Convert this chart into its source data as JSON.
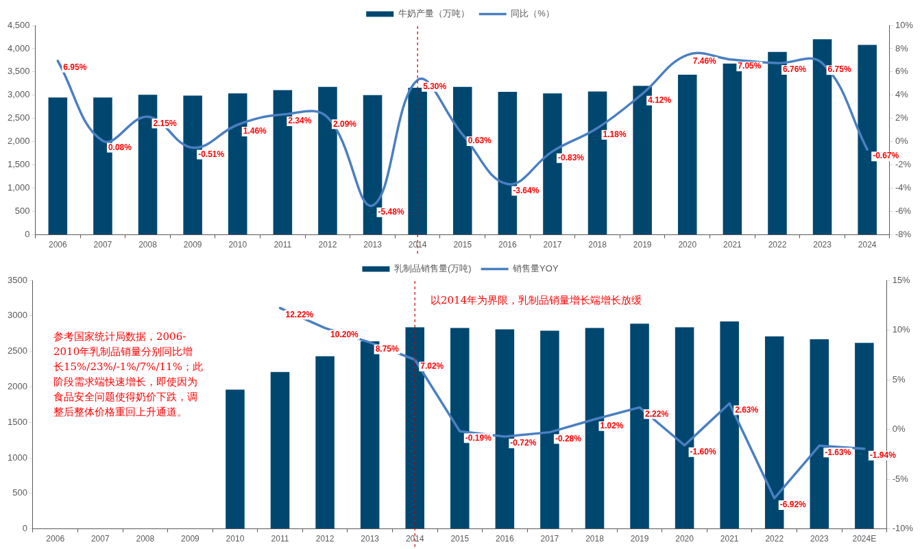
{
  "chart_data": [
    {
      "type": "bar",
      "categories": [
        "2006",
        "2007",
        "2008",
        "2009",
        "2010",
        "2011",
        "2012",
        "2013",
        "2014",
        "2015",
        "2016",
        "2017",
        "2018",
        "2019",
        "2020",
        "2021",
        "2022",
        "2023",
        "2024"
      ],
      "series": [
        {
          "name": "牛奶产量（万吨）",
          "color": "#00476f",
          "values": [
            2950,
            2950,
            3010,
            2990,
            3040,
            3110,
            3180,
            3000,
            3160,
            3180,
            3070,
            3040,
            3080,
            3200,
            3440,
            3680,
            3930,
            4200,
            4080
          ]
        },
        {
          "name": "同比（%）",
          "type": "line",
          "axis": "y2",
          "color": "#4a7fc1",
          "values": [
            6.95,
            0.08,
            2.15,
            -0.51,
            1.46,
            2.34,
            2.09,
            -5.48,
            5.3,
            0.63,
            -3.64,
            -0.83,
            1.18,
            4.12,
            7.46,
            7.05,
            6.76,
            6.75,
            -0.67
          ],
          "value_labels": [
            "6.95%",
            "0.08%",
            "2.15%",
            "-0.51%",
            "1.46%",
            "2.34%",
            "2.09%",
            "-5.48%",
            "5.30%",
            "0.63%",
            "-3.64%",
            "-0.83%",
            "1.18%",
            "4.12%",
            "7.46%",
            "7.05%",
            "6.76%",
            "6.75%",
            "-0.67%"
          ]
        }
      ],
      "ylim": [
        0,
        4500
      ],
      "yticks": [
        0,
        {
          "value": 500,
          "label": "500"
        },
        {
          "value": 1000,
          "label": "1,000"
        },
        {
          "value": 1500,
          "label": "1,500"
        },
        {
          "value": 2000,
          "label": "2,000"
        },
        {
          "value": 2500,
          "label": "2,500"
        },
        {
          "value": 3000,
          "label": "3,000"
        },
        {
          "value": 3500,
          "label": "3,500"
        },
        {
          "value": 4000,
          "label": "4,000"
        },
        {
          "value": 4500,
          "label": "4,500"
        }
      ],
      "y2lim": [
        -8,
        10
      ],
      "y2ticks": [
        {
          "value": -8,
          "label": "-8%"
        },
        {
          "value": -6,
          "label": "-6%"
        },
        {
          "value": -4,
          "label": "-4%"
        },
        {
          "value": -2,
          "label": "-2%"
        },
        {
          "value": 0,
          "label": "0%"
        },
        {
          "value": 2,
          "label": "2%"
        },
        {
          "value": 4,
          "label": "4%"
        },
        {
          "value": 6,
          "label": "6%"
        },
        {
          "value": 8,
          "label": "8%"
        },
        {
          "value": 10,
          "label": "10%"
        }
      ],
      "ref_lines": [
        {
          "axis": "x",
          "value": "2014",
          "color": "#c00000",
          "line_style": "dashed"
        }
      ],
      "legend": "top",
      "marker": "none"
    },
    {
      "type": "bar",
      "categories": [
        "2006",
        "2007",
        "2008",
        "2009",
        "2010",
        "2011",
        "2012",
        "2013",
        "2014",
        "2015",
        "2016",
        "2017",
        "2018",
        "2019",
        "2020",
        "2021",
        "2022",
        "2023",
        "2024E"
      ],
      "series": [
        {
          "name": "乳制品销售量(万吨)",
          "color": "#00476f",
          "values": [
            null,
            null,
            null,
            null,
            1960,
            2210,
            2430,
            2640,
            2840,
            2830,
            2810,
            2790,
            2830,
            2890,
            2840,
            2920,
            2710,
            2670,
            2620
          ]
        },
        {
          "name": "销售量YOY",
          "type": "line",
          "axis": "y2",
          "color": "#4a7fc1",
          "values": [
            null,
            null,
            null,
            null,
            null,
            12.22,
            10.2,
            8.75,
            7.02,
            -0.19,
            -0.72,
            -0.28,
            1.02,
            2.22,
            -1.6,
            2.63,
            -6.92,
            -1.63,
            -1.94
          ],
          "value_labels": [
            null,
            null,
            null,
            null,
            null,
            "12.22%",
            "10.20%",
            "8.75%",
            "7.02%",
            "-0.19%",
            "-0.72%",
            "-0.28%",
            "1.02%",
            "2.22%",
            "-1.60%",
            "2.63%",
            "-6.92%",
            "-1.63%",
            "-1.94%"
          ]
        }
      ],
      "ylim": [
        0,
        3500
      ],
      "yticks": [
        0,
        500,
        1000,
        1500,
        2000,
        2500,
        3000,
        3500
      ],
      "y2lim": [
        -10,
        15
      ],
      "y2ticks": [
        {
          "value": -10,
          "label": "-10%"
        },
        {
          "value": -5,
          "label": "-5%"
        },
        {
          "value": 0,
          "label": "0%"
        },
        {
          "value": 5,
          "label": "5%"
        },
        {
          "value": 10,
          "label": "10%"
        },
        {
          "value": 15,
          "label": "15%"
        }
      ],
      "ref_lines": [
        {
          "axis": "x",
          "value": "2014",
          "color": "#c00000",
          "line_style": "dashed"
        }
      ],
      "annotations": [
        "参考国家统计局数据，2006-2010年乳制品销量分别同比增长15%/23%/-1%/7%/11%；此阶段需求端快速增长，即使因为食品安全问题使得奶价下跌，调整后整体价格重回上升通道。",
        "以2014年为界限，乳制品销量增长端增长放缓"
      ],
      "legend": "top",
      "marker": "none"
    }
  ]
}
